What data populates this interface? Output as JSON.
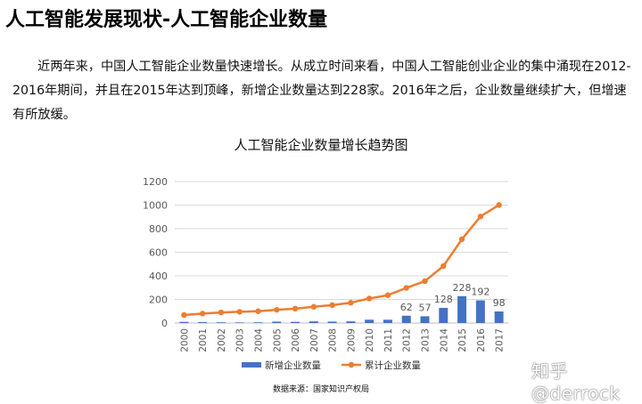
{
  "page": {
    "heading": "人工智能发展现状-人工智能企业数量",
    "paragraph": "近两年来，中国人工智能企业数量快速增长。从成立时间来看，中国人工智能创业企业的集中涌现在2012-2016年期间，并且在2015年达到顶峰，新增企业数量达到228家。2016年之后，企业数量继续扩大，但增速有所放缓。",
    "source": "数据来源：国家知识产权局",
    "watermark": "知乎 @derrock"
  },
  "chart_data": {
    "type": "bar",
    "title": "人工智能企业数量增长趋势图",
    "categories": [
      "2000",
      "2001",
      "2002",
      "2003",
      "2004",
      "2005",
      "2006",
      "2007",
      "2008",
      "2009",
      "2010",
      "2011",
      "2012",
      "2013",
      "2014",
      "2015",
      "2016",
      "2017"
    ],
    "ylim": [
      0,
      1200
    ],
    "yticks": [
      0,
      200,
      400,
      600,
      800,
      1000,
      1200
    ],
    "grid": true,
    "legend_position": "bottom",
    "series": [
      {
        "name": "新增企业数量",
        "kind": "bar",
        "color": "#4472C4",
        "values": [
          10,
          8,
          6,
          5,
          6,
          12,
          10,
          14,
          12,
          14,
          28,
          28,
          62,
          57,
          128,
          228,
          192,
          98
        ],
        "labels": [
          null,
          null,
          null,
          null,
          null,
          null,
          null,
          null,
          null,
          null,
          null,
          null,
          "62",
          "57",
          "128",
          "228",
          "192",
          "98"
        ]
      },
      {
        "name": "累计企业数量",
        "kind": "line",
        "color": "#ED7D31",
        "values": [
          68,
          80,
          90,
          95,
          100,
          112,
          122,
          138,
          152,
          172,
          208,
          236,
          298,
          355,
          483,
          711,
          903,
          1001
        ]
      }
    ]
  }
}
